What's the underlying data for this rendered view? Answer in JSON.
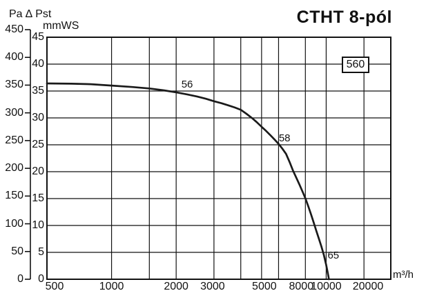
{
  "header": {
    "title": "CTHT 8-pól",
    "pressure_axis_title": "Pa ∆ Pst",
    "inner_axis_unit": "mmWS",
    "flow_axis_unit": "m³/h"
  },
  "chart_data": {
    "type": "line",
    "title": "CTHT 8-pól",
    "xlabel": "m³/h",
    "x_scale": "log",
    "xlim": [
      500,
      20000
    ],
    "grid": true,
    "x_gridlines": [
      500,
      1000,
      1500,
      2000,
      3000,
      4000,
      5000,
      6000,
      8000,
      10000,
      15000,
      20000
    ],
    "x_tick_values": [
      500,
      1000,
      2000,
      3000,
      5000,
      8000,
      10000,
      20000
    ],
    "x_tick_labels": [
      "500",
      "1000",
      "2000",
      "3000",
      "5000",
      "8000",
      "10000",
      "20000"
    ],
    "y_left_axis": {
      "unit": "Pa",
      "quantity": "∆ Pst",
      "lim": [
        0,
        450
      ],
      "ticks": [
        450,
        400,
        350,
        300,
        250,
        200,
        150,
        100,
        50,
        0
      ]
    },
    "y_inner_axis": {
      "unit": "mmWS",
      "lim": [
        0,
        45
      ],
      "ticks": [
        45,
        40,
        35,
        30,
        25,
        20,
        15,
        10,
        5,
        0
      ]
    },
    "fan_size_label": "560",
    "fan_size_label_position": {
      "flow": 13700,
      "pa": 387
    },
    "sound_level_labels": [
      {
        "text": "56",
        "flow": 2250,
        "pa": 351
      },
      {
        "text": "58",
        "flow": 6400,
        "pa": 254
      },
      {
        "text": "65",
        "flow": 10800,
        "pa": 42
      }
    ],
    "series": [
      {
        "name": "560",
        "x_unit": "m³/h",
        "y_unit": "Pa",
        "points": [
          [
            500,
            353
          ],
          [
            650,
            352.5
          ],
          [
            800,
            351.7
          ],
          [
            1000,
            349.2
          ],
          [
            1250,
            346.6
          ],
          [
            1500,
            344
          ],
          [
            1750,
            340.6
          ],
          [
            2000,
            337
          ],
          [
            2250,
            333.3
          ],
          [
            2500,
            329.5
          ],
          [
            2750,
            325.4
          ],
          [
            3000,
            321
          ],
          [
            3250,
            317.4
          ],
          [
            3500,
            313.5
          ],
          [
            3750,
            309.6
          ],
          [
            4000,
            305.5
          ],
          [
            4250,
            298.4
          ],
          [
            4500,
            291
          ],
          [
            4750,
            283.2
          ],
          [
            5000,
            275
          ],
          [
            5250,
            267.4
          ],
          [
            5500,
            259.5
          ],
          [
            5750,
            251.9
          ],
          [
            6000,
            244
          ],
          [
            6250,
            235.3
          ],
          [
            6500,
            226
          ],
          [
            6750,
            211.5
          ],
          [
            7000,
            196
          ],
          [
            7250,
            183.5
          ],
          [
            7500,
            171
          ],
          [
            7750,
            158.5
          ],
          [
            8000,
            146
          ],
          [
            8250,
            131.5
          ],
          [
            8500,
            117
          ],
          [
            8750,
            102
          ],
          [
            9000,
            87
          ],
          [
            9250,
            73
          ],
          [
            9500,
            59
          ],
          [
            9750,
            44
          ],
          [
            10000,
            26
          ],
          [
            10150,
            13.5
          ],
          [
            10300,
            0
          ]
        ]
      }
    ],
    "colors": {
      "ink": "#111111",
      "grid": "#111111",
      "curve": "#1a1a1a",
      "background": "#ffffff"
    }
  }
}
